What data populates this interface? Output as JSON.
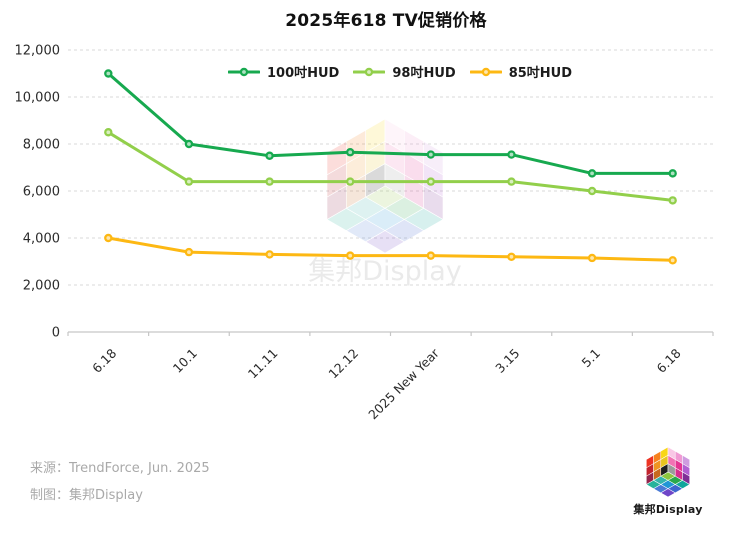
{
  "title": "2025年618 TV促销价格",
  "colors": {
    "series_100": "#17a94f",
    "series_98": "#92cf4b",
    "series_85": "#fdb813",
    "grid": "#d9d9d9",
    "axis": "#c6c6c6",
    "tick_label": "#2b2b2b",
    "footer_text": "#a9a9a9",
    "watermark_text": "#d9d9d9"
  },
  "chart_data": {
    "type": "line",
    "title": "2025年618 TV促销价格",
    "categories": [
      "6.18",
      "10.1",
      "11.11",
      "12.12",
      "2025 New Year",
      "3.15",
      "5.1",
      "6.18"
    ],
    "series": [
      {
        "name": "100吋HUD",
        "color": "#17a94f",
        "values": [
          11000,
          8000,
          7500,
          7650,
          7550,
          7550,
          6750,
          6750
        ]
      },
      {
        "name": "98吋HUD",
        "color": "#92cf4b",
        "values": [
          8500,
          6400,
          6400,
          6400,
          6400,
          6400,
          6000,
          5600
        ]
      },
      {
        "name": "85吋HUD",
        "color": "#fdb813",
        "values": [
          4000,
          3400,
          3300,
          3250,
          3250,
          3200,
          3150,
          3050
        ]
      }
    ],
    "xlabel": "",
    "ylabel": "",
    "ylim": [
      0,
      12000
    ],
    "ytick_step": 2000,
    "ytick_labels": [
      "0",
      "2,000",
      "4,000",
      "6,000",
      "8,000",
      "10,000",
      "12,000"
    ],
    "grid": "horizontal-dashed",
    "legend_position": "top-center",
    "x_tick_rotation": -45
  },
  "watermark": {
    "text": "集邦Display"
  },
  "footer": {
    "source": "来源：TrendForce, Jun. 2025",
    "credit": "制图：集邦Display"
  },
  "logo": {
    "caption": "集邦Display"
  }
}
